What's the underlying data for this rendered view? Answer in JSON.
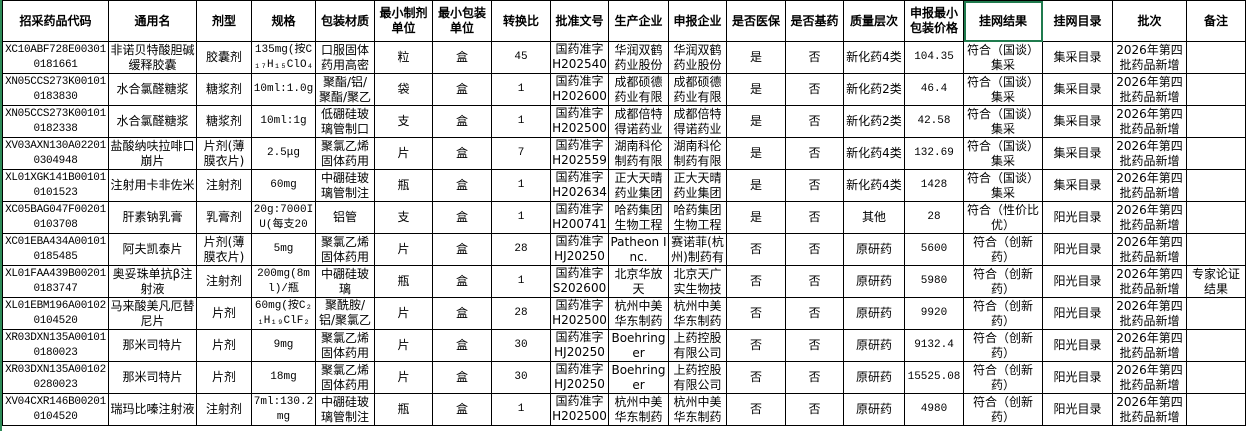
{
  "sheet": {
    "accent_color": "#1f7a4d",
    "selected_header": "挂网结果",
    "columns": [
      "招采药品代码",
      "通用名",
      "剂型",
      "规格",
      "包装材质",
      "最小制剂单位",
      "最小包装单位",
      "转换比",
      "批准文号",
      "生产企业",
      "申报企业",
      "是否医保",
      "是否基药",
      "质量层次",
      "申报最小包装价格",
      "挂网结果",
      "挂网目录",
      "批次",
      "备注"
    ],
    "rows": [
      [
        "XC10ABF728E003010181661",
        "非诺贝特酸胆碱缓释胶囊",
        "胶囊剂",
        "135mg(按C₁₇H₁₅ClO₄",
        "口服固体药用高密",
        "粒",
        "盒",
        "45",
        "国药准字H20254000",
        "华润双鹤药业股份",
        "华润双鹤药业股份",
        "是",
        "否",
        "新化药4类",
        "104.35",
        "符合（国谈）集采",
        "集采目录",
        "2026年第四批药品新增",
        ""
      ],
      [
        "XN05CCS273K001010183830",
        "水合氯醛糖浆",
        "糖浆剂",
        "10ml:1.0g",
        "聚酯/铝/聚酯/聚乙",
        "袋",
        "盒",
        "1",
        "国药准字H20260003",
        "成都硕德药业有限",
        "成都硕德药业有限",
        "是",
        "否",
        "新化药2类",
        "46.4",
        "符合（国谈）集采",
        "集采目录",
        "2026年第四批药品新增",
        ""
      ],
      [
        "XN05CCS273K001010182338",
        "水合氯醛糖浆",
        "糖浆剂",
        "10ml:1g",
        "低硼硅玻璃管制口",
        "支",
        "盒",
        "1",
        "国药准字H20250078",
        "成都倍特得诺药业",
        "成都倍特得诺药业",
        "是",
        "否",
        "新化药2类",
        "42.58",
        "符合（国谈）集采",
        "集采目录",
        "2026年第四批药品新增",
        ""
      ],
      [
        "XV03AXN130A022010304948",
        "盐酸纳呋拉啡口崩片",
        "片剂(薄膜衣片)",
        "2.5μg",
        "聚氯乙烯固体药用",
        "片",
        "盒",
        "7",
        "国药准字H20255975",
        "湖南科伦制药有限",
        "湖南科伦制药有限",
        "是",
        "否",
        "新化药4类",
        "132.69",
        "符合（国谈）集采",
        "集采目录",
        "2026年第四批药品新增",
        ""
      ],
      [
        "XL01XGK141B001010101523",
        "注射用卡非佐米",
        "注射剂",
        "60mg",
        "中硼硅玻璃管制注",
        "瓶",
        "盒",
        "1",
        "国药准字H20263413",
        "正大天晴药业集团",
        "正大天晴药业集团",
        "是",
        "否",
        "新化药4类",
        "1428",
        "符合（国谈）集采",
        "集采目录",
        "2026年第四批药品新增",
        ""
      ],
      [
        "XC05BAG047F002010103708",
        "肝素钠乳膏",
        "乳膏剂",
        "20g:7000IU(每支20",
        "铝管",
        "支",
        "盒",
        "1",
        "国药准字H20074174",
        "哈药集团生物工程",
        "哈药集团生物工程",
        "是",
        "否",
        "其他",
        "28",
        "符合（性价比优）",
        "阳光目录",
        "2026年第四批药品新增",
        ""
      ],
      [
        "XC01EBA434A001010185485",
        "阿夫凯泰片",
        "片剂(薄膜衣片)",
        "5mg",
        "聚氯乙烯固体药用",
        "片",
        "盒",
        "28",
        "国药准字HJ2025014",
        "Patheon Inc.",
        "赛诺菲(杭州)制药有",
        "否",
        "否",
        "原研药",
        "5600",
        "符合（创新药）",
        "阳光目录",
        "2026年第四批药品新增",
        ""
      ],
      [
        "XL01FAA439B002010183747",
        "奥妥珠单抗β注射液",
        "注射剂",
        "200mg(8ml)/瓶",
        "中硼硅玻璃",
        "瓶",
        "盒",
        "1",
        "国药准字S20260011",
        "北京华放天",
        "北京天广实生物技",
        "否",
        "否",
        "原研药",
        "5980",
        "符合（创新药）",
        "阳光目录",
        "2026年第四批药品新增",
        "专家论证结果"
      ],
      [
        "XL01EBM196A001020104520",
        "马来酸美凡厄替尼片",
        "片剂",
        "60mg(按C₂₁H₁₉ClF₂",
        "聚酰胺/铝/聚氯乙烯",
        "片",
        "盒",
        "28",
        "国药准字H20250062",
        "杭州中美华东制药",
        "杭州中美华东制药",
        "否",
        "否",
        "原研药",
        "9920",
        "符合（创新药）",
        "阳光目录",
        "2026年第四批药品新增",
        ""
      ],
      [
        "XR03DXN135A001010180023",
        "那米司特片",
        "片剂",
        "9mg",
        "聚氯乙烯固体药用",
        "片",
        "盒",
        "30",
        "国药准字HJ2025012",
        "Boehringer",
        "上药控股有限公司",
        "否",
        "否",
        "原研药",
        "9132.4",
        "符合（创新药）",
        "阳光目录",
        "2026年第四批药品新增",
        ""
      ],
      [
        "XR03DXN135A001020280023",
        "那米司特片",
        "片剂",
        "18mg",
        "聚氯乙烯固体药用",
        "片",
        "盒",
        "30",
        "国药准字HJ2025012",
        "Boehringer",
        "上药控股有限公司",
        "否",
        "否",
        "原研药",
        "15525.08",
        "符合（创新药）",
        "阳光目录",
        "2026年第四批药品新增",
        ""
      ],
      [
        "XV04CXR146B002010104520",
        "瑞玛比嗪注射液",
        "注射剂",
        "7ml:130.2mg",
        "中硼硅玻璃管制注",
        "瓶",
        "盒",
        "1",
        "国药准字H20250060",
        "杭州中美华东制药",
        "杭州中美华东制药",
        "否",
        "否",
        "原研药",
        "4980",
        "符合（创新药）",
        "阳光目录",
        "2026年第四批药品新增",
        ""
      ]
    ]
  }
}
